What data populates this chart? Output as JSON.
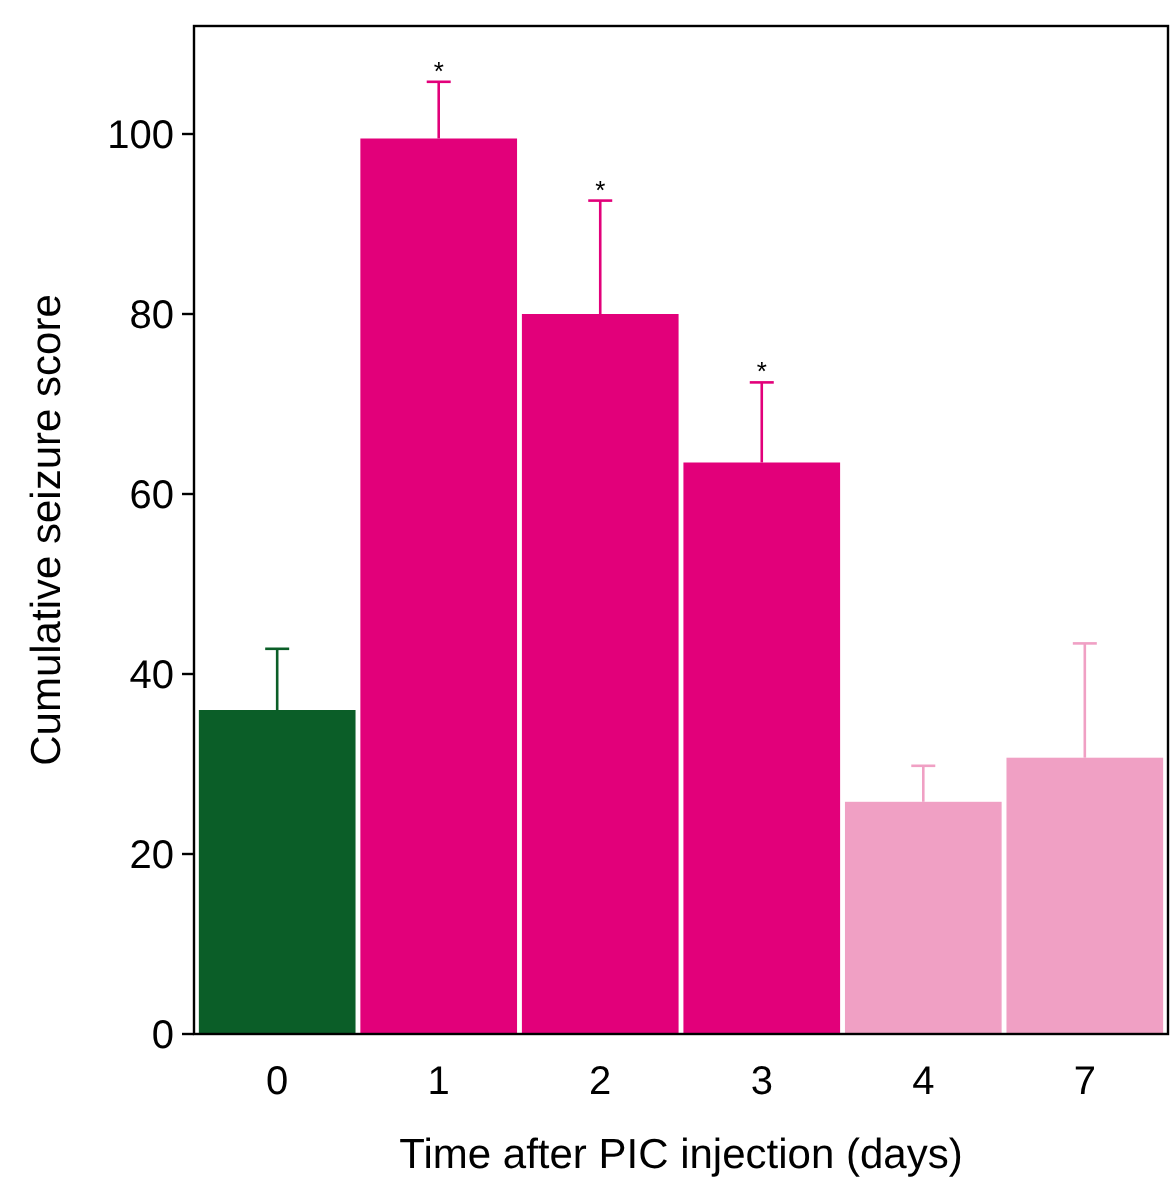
{
  "chart_data": {
    "type": "bar",
    "xlabel": "Time after PIC injection (days)",
    "ylabel": "Cumulative seizure score",
    "categories": [
      "0",
      "1",
      "2",
      "3",
      "4",
      "7"
    ],
    "values": [
      36,
      99.5,
      80,
      63.5,
      25.8,
      30.7
    ],
    "colors": [
      "#0b5e28",
      "#e2007a",
      "#e2007a",
      "#e2007a",
      "#f0a0c4",
      "#f0a0c4"
    ],
    "errors": [
      [
        36,
        42.8
      ],
      [
        99.5,
        105.8
      ],
      [
        80,
        92.6
      ],
      [
        63.5,
        72.4
      ],
      [
        25.8,
        29.8
      ],
      [
        30.7,
        43.4
      ]
    ],
    "annotations": [
      {
        "text": "*",
        "x": "1",
        "y": 105.8
      },
      {
        "text": "*",
        "x": "2",
        "y": 92.6
      },
      {
        "text": "*",
        "x": "3",
        "y": 72.4
      }
    ],
    "ylim": [
      0,
      112
    ],
    "yticks": [
      0,
      20,
      40,
      60,
      80,
      100
    ]
  }
}
